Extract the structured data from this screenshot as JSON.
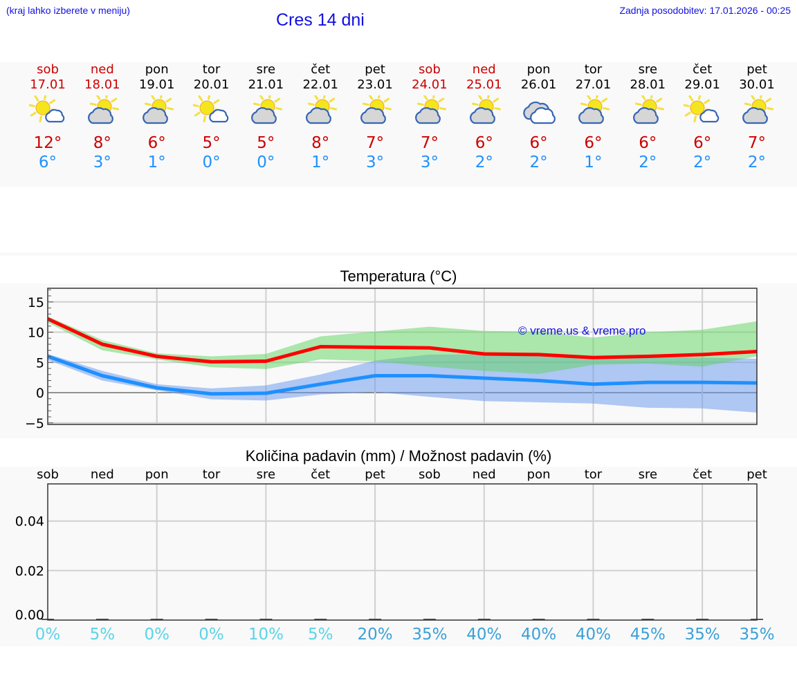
{
  "header": {
    "hint": "(kraj lahko izberete v meniju)",
    "title": "Cres 14 dni",
    "updated": "Zadnja posodobitev: 17.01.2026 - 00:25"
  },
  "colors": {
    "accent_blue": "#1010e0",
    "max_temp": "#cc0000",
    "min_temp": "#1e90ff",
    "max_line": "#ff0000",
    "min_line": "#1e90ff",
    "max_band": "#aeeaae",
    "min_band": "#aec8f2",
    "overlap_band": "#7ec9a8",
    "pct_low": "#5bd3e6",
    "pct_high": "#3aa0d8"
  },
  "days": [
    {
      "name": "sob",
      "date": "17.01",
      "icon": "mostly-sunny-icon",
      "max": "12°",
      "min": "6°",
      "weekend": true
    },
    {
      "name": "ned",
      "date": "18.01",
      "icon": "partly-cloudy-icon",
      "max": "8°",
      "min": "3°",
      "weekend": true
    },
    {
      "name": "pon",
      "date": "19.01",
      "icon": "partly-cloudy-icon",
      "max": "6°",
      "min": "1°",
      "weekend": false
    },
    {
      "name": "tor",
      "date": "20.01",
      "icon": "mostly-sunny-icon",
      "max": "5°",
      "min": "0°",
      "weekend": false
    },
    {
      "name": "sre",
      "date": "21.01",
      "icon": "partly-cloudy-icon",
      "max": "5°",
      "min": "0°",
      "weekend": false
    },
    {
      "name": "čet",
      "date": "22.01",
      "icon": "partly-cloudy-icon",
      "max": "8°",
      "min": "1°",
      "weekend": false
    },
    {
      "name": "pet",
      "date": "23.01",
      "icon": "partly-cloudy-icon",
      "max": "7°",
      "min": "3°",
      "weekend": false
    },
    {
      "name": "sob",
      "date": "24.01",
      "icon": "partly-cloudy-icon",
      "max": "7°",
      "min": "3°",
      "weekend": true
    },
    {
      "name": "ned",
      "date": "25.01",
      "icon": "partly-cloudy-icon",
      "max": "6°",
      "min": "2°",
      "weekend": true
    },
    {
      "name": "pon",
      "date": "26.01",
      "icon": "cloudy-icon",
      "max": "6°",
      "min": "2°",
      "weekend": false
    },
    {
      "name": "tor",
      "date": "27.01",
      "icon": "partly-cloudy-icon",
      "max": "6°",
      "min": "1°",
      "weekend": false
    },
    {
      "name": "sre",
      "date": "28.01",
      "icon": "partly-cloudy-icon",
      "max": "6°",
      "min": "2°",
      "weekend": false
    },
    {
      "name": "čet",
      "date": "29.01",
      "icon": "mostly-sunny-icon",
      "max": "6°",
      "min": "2°",
      "weekend": false
    },
    {
      "name": "pet",
      "date": "30.01",
      "icon": "partly-cloudy-icon",
      "max": "7°",
      "min": "2°",
      "weekend": false
    }
  ],
  "chart_data": [
    {
      "type": "line",
      "title": "Temperatura (°C)",
      "xlabel": "",
      "ylabel": "",
      "ylim": [
        -5.5,
        17.5
      ],
      "yticks": [
        15,
        10,
        5,
        0,
        -5
      ],
      "ytick_labels": [
        "15",
        "10",
        "5",
        "0",
        "−5"
      ],
      "grid": true,
      "watermark": "© vreme.us & vreme.pro",
      "x": [
        "17.01",
        "18.01",
        "19.01",
        "20.01",
        "21.01",
        "22.01",
        "23.01",
        "24.01",
        "25.01",
        "26.01",
        "27.01",
        "28.01",
        "29.01",
        "30.01"
      ],
      "series": [
        {
          "name": "max",
          "color": "#ff0000",
          "values": [
            12.2,
            8.0,
            6.0,
            5.1,
            5.2,
            7.6,
            7.5,
            7.4,
            6.4,
            6.3,
            5.8,
            6.0,
            6.3,
            6.8
          ]
        },
        {
          "name": "min",
          "color": "#1e90ff",
          "values": [
            6.0,
            2.8,
            0.8,
            -0.2,
            -0.1,
            1.4,
            2.8,
            2.8,
            2.4,
            2.0,
            1.4,
            1.7,
            1.7,
            1.6
          ]
        },
        {
          "name": "max_range_upper",
          "values": [
            12.6,
            8.7,
            6.5,
            6.0,
            6.4,
            9.3,
            10.1,
            10.9,
            10.2,
            10.1,
            9.1,
            10.0,
            10.4,
            11.8
          ]
        },
        {
          "name": "max_range_lower",
          "values": [
            11.6,
            7.0,
            5.5,
            4.2,
            3.9,
            5.5,
            5.2,
            4.3,
            3.6,
            3.1,
            4.6,
            4.8,
            4.3,
            6.0
          ]
        },
        {
          "name": "min_range_upper",
          "values": [
            6.4,
            3.6,
            1.4,
            0.7,
            1.2,
            3.0,
            5.3,
            6.3,
            6.3,
            6.3,
            5.8,
            5.8,
            5.8,
            5.6
          ]
        },
        {
          "name": "min_range_lower",
          "values": [
            5.4,
            2.0,
            0.4,
            -1.1,
            -1.3,
            -0.3,
            0.1,
            -0.7,
            -1.4,
            -1.6,
            -1.8,
            -2.5,
            -2.6,
            -3.3
          ]
        }
      ]
    },
    {
      "type": "bar",
      "title": "Količina padavin (mm) / Možnost padavin (%)",
      "xlabel": "",
      "ylabel": "",
      "ylim": [
        0,
        0.055
      ],
      "yticks": [
        0.0,
        0.02,
        0.04
      ],
      "ytick_labels": [
        "0.00",
        "0.02",
        "0.04"
      ],
      "grid": true,
      "categories": [
        "sob",
        "ned",
        "pon",
        "tor",
        "sre",
        "čet",
        "pet",
        "sob",
        "ned",
        "pon",
        "tor",
        "sre",
        "čet",
        "pet"
      ],
      "values": [
        0,
        0,
        0,
        0,
        0,
        0,
        0,
        0,
        0,
        0,
        0,
        0,
        0,
        0
      ],
      "probability": [
        "0%",
        "5%",
        "0%",
        "0%",
        "10%",
        "5%",
        "20%",
        "35%",
        "40%",
        "40%",
        "40%",
        "45%",
        "35%",
        "35%"
      ]
    }
  ]
}
